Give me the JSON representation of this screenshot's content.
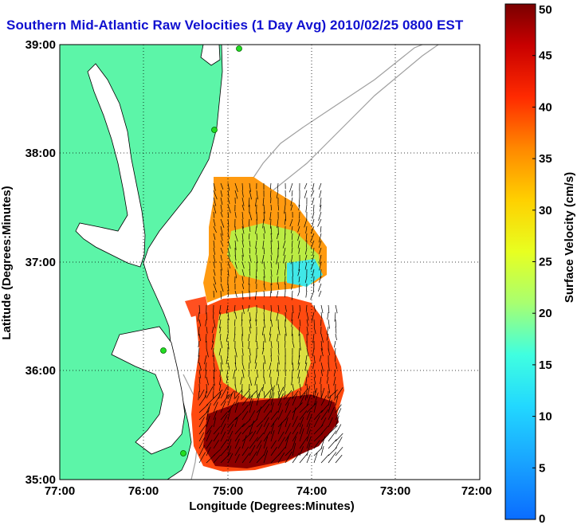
{
  "title": "Southern Mid-Atlantic Raw Velocities (1 Day Avg) 2010/02/25 0800 EST",
  "axes": {
    "xlabel": "Longitude (Degrees:Minutes)",
    "ylabel": "Latitude (Degrees:Minutes)",
    "x_ticks": [
      "77:00",
      "76:00",
      "75:00",
      "74:00",
      "73:00",
      "72:00"
    ],
    "y_ticks": [
      "39:00",
      "38:00",
      "37:00",
      "36:00",
      "35:00"
    ]
  },
  "colorbar": {
    "label": "Surface Velocity (cm/s)",
    "ticks": [
      "0",
      "5",
      "10",
      "15",
      "20",
      "25",
      "30",
      "35",
      "40",
      "45",
      "50"
    ],
    "min": 0,
    "max": 50
  },
  "colors": {
    "land": "#5cf5a8",
    "title": "#1010d0",
    "station": "#22dd22",
    "bathymetry": "#a0a0a0"
  }
}
